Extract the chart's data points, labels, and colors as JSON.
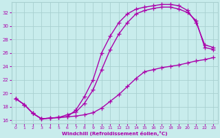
{
  "bg_color": "#c8ecec",
  "grid_color": "#a8d0d0",
  "line_color": "#aa00aa",
  "marker": "+",
  "marker_size": 4,
  "line_width": 1.0,
  "xlabel": "Windchill (Refroidissement éolien,°C)",
  "xlim": [
    -0.5,
    23.5
  ],
  "ylim": [
    15.5,
    33.5
  ],
  "xticks": [
    0,
    1,
    2,
    3,
    4,
    5,
    6,
    7,
    8,
    9,
    10,
    11,
    12,
    13,
    14,
    15,
    16,
    17,
    18,
    19,
    20,
    21,
    22,
    23
  ],
  "yticks": [
    16,
    18,
    20,
    22,
    24,
    26,
    28,
    30,
    32
  ],
  "curve_top_x": [
    0,
    1,
    2,
    3,
    4,
    5,
    6,
    7,
    8,
    9,
    10,
    11,
    12,
    13,
    14,
    15,
    16,
    17,
    18,
    19,
    20,
    21,
    22,
    23
  ],
  "curve_top_y": [
    19.2,
    18.3,
    17.0,
    16.2,
    16.3,
    16.4,
    16.5,
    17.5,
    19.5,
    22.0,
    26.0,
    28.5,
    30.5,
    31.8,
    32.5,
    32.8,
    33.0,
    33.2,
    33.2,
    33.0,
    32.3,
    30.5,
    27.2,
    26.8
  ],
  "curve_mid_x": [
    0,
    1,
    2,
    3,
    4,
    5,
    6,
    7,
    8,
    9,
    10,
    11,
    12,
    13,
    14,
    15,
    16,
    17,
    18,
    19,
    20,
    21,
    22,
    23
  ],
  "curve_mid_y": [
    19.2,
    18.3,
    17.0,
    16.2,
    16.3,
    16.4,
    16.8,
    17.2,
    18.5,
    20.5,
    23.5,
    26.5,
    28.8,
    30.5,
    31.8,
    32.3,
    32.6,
    32.8,
    32.8,
    32.5,
    32.0,
    30.8,
    26.8,
    26.5
  ],
  "curve_bot_x": [
    0,
    1,
    2,
    3,
    4,
    5,
    6,
    7,
    8,
    9,
    10,
    11,
    12,
    13,
    14,
    15,
    16,
    17,
    18,
    19,
    20,
    21,
    22,
    23
  ],
  "curve_bot_y": [
    19.2,
    18.3,
    17.0,
    16.2,
    16.3,
    16.4,
    16.5,
    16.6,
    16.8,
    17.1,
    17.8,
    18.8,
    19.8,
    21.0,
    22.2,
    23.2,
    23.5,
    23.8,
    24.0,
    24.2,
    24.5,
    24.8,
    25.0,
    25.3
  ]
}
